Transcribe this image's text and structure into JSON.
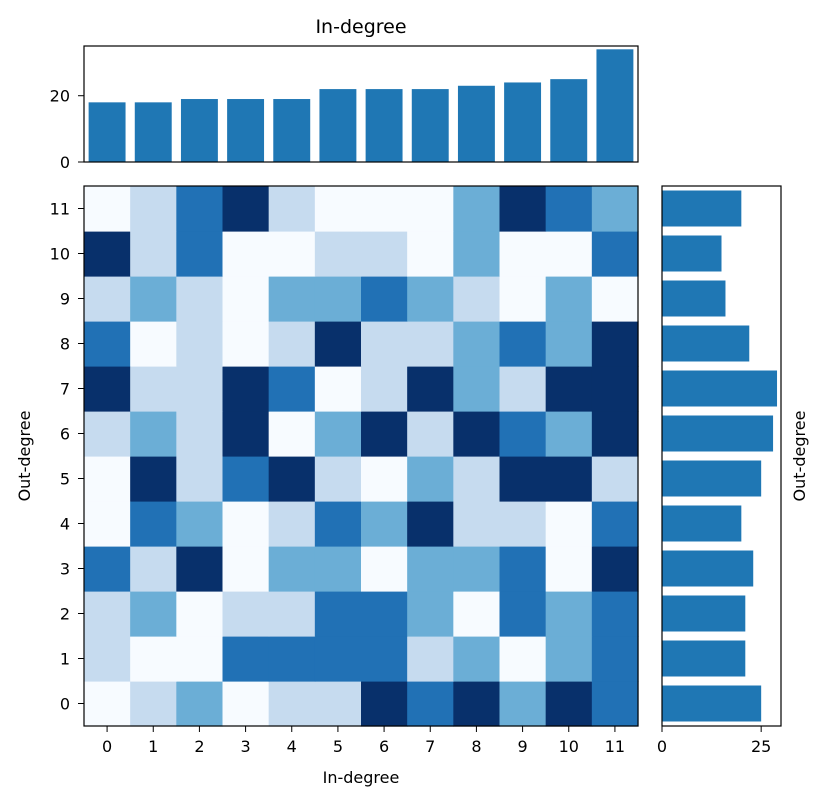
{
  "chart_data": [
    {
      "type": "bar",
      "title": "In-degree",
      "orientation": "vertical",
      "categories": [
        "0",
        "1",
        "2",
        "3",
        "4",
        "5",
        "6",
        "7",
        "8",
        "9",
        "10",
        "11"
      ],
      "values": [
        18,
        18,
        19,
        19,
        19,
        22,
        22,
        22,
        23,
        24,
        25,
        34
      ],
      "ylim": [
        0,
        35
      ],
      "yticks": [
        "0",
        "20"
      ],
      "color": "#1f77b4"
    },
    {
      "type": "heatmap",
      "xlabel": "In-degree",
      "ylabel": "Out-degree",
      "x_categories": [
        "0",
        "1",
        "2",
        "3",
        "4",
        "5",
        "6",
        "7",
        "8",
        "9",
        "10",
        "11"
      ],
      "y_categories": [
        "0",
        "1",
        "2",
        "3",
        "4",
        "5",
        "6",
        "7",
        "8",
        "9",
        "10",
        "11"
      ],
      "colormap": "Blues",
      "levels": [
        "#f7fbff",
        "#c6dbef",
        "#6baed6",
        "#2171b5",
        "#08306b"
      ],
      "matrix_rows_bottom_to_top": [
        [
          0,
          1,
          2,
          0,
          1,
          1,
          4,
          3,
          4,
          2,
          4,
          3
        ],
        [
          1,
          0,
          0,
          3,
          3,
          3,
          3,
          1,
          2,
          0,
          2,
          3
        ],
        [
          1,
          2,
          0,
          1,
          1,
          3,
          3,
          2,
          0,
          3,
          2,
          3
        ],
        [
          3,
          1,
          4,
          0,
          2,
          2,
          0,
          2,
          2,
          3,
          0,
          4
        ],
        [
          0,
          3,
          2,
          0,
          1,
          3,
          2,
          4,
          1,
          1,
          0,
          3
        ],
        [
          0,
          4,
          1,
          3,
          4,
          1,
          0,
          2,
          1,
          4,
          4,
          1
        ],
        [
          1,
          2,
          1,
          4,
          0,
          2,
          4,
          1,
          4,
          3,
          2,
          4
        ],
        [
          4,
          1,
          1,
          4,
          3,
          0,
          1,
          4,
          2,
          1,
          4,
          4
        ],
        [
          3,
          0,
          1,
          0,
          1,
          4,
          1,
          1,
          2,
          3,
          2,
          4
        ],
        [
          1,
          2,
          1,
          0,
          2,
          2,
          3,
          2,
          1,
          0,
          2,
          0
        ],
        [
          4,
          1,
          3,
          0,
          0,
          1,
          1,
          0,
          2,
          0,
          0,
          3
        ],
        [
          0,
          1,
          3,
          4,
          1,
          0,
          0,
          0,
          2,
          4,
          3,
          2
        ]
      ]
    },
    {
      "type": "bar",
      "orientation": "horizontal",
      "ylabel": "Out-degree",
      "categories": [
        "0",
        "1",
        "2",
        "3",
        "4",
        "5",
        "6",
        "7",
        "8",
        "9",
        "10",
        "11"
      ],
      "values": [
        25,
        21,
        21,
        23,
        20,
        25,
        28,
        29,
        22,
        16,
        15,
        20
      ],
      "xlim": [
        0,
        30
      ],
      "xticks": [
        "0",
        "25"
      ],
      "color": "#1f77b4"
    }
  ]
}
